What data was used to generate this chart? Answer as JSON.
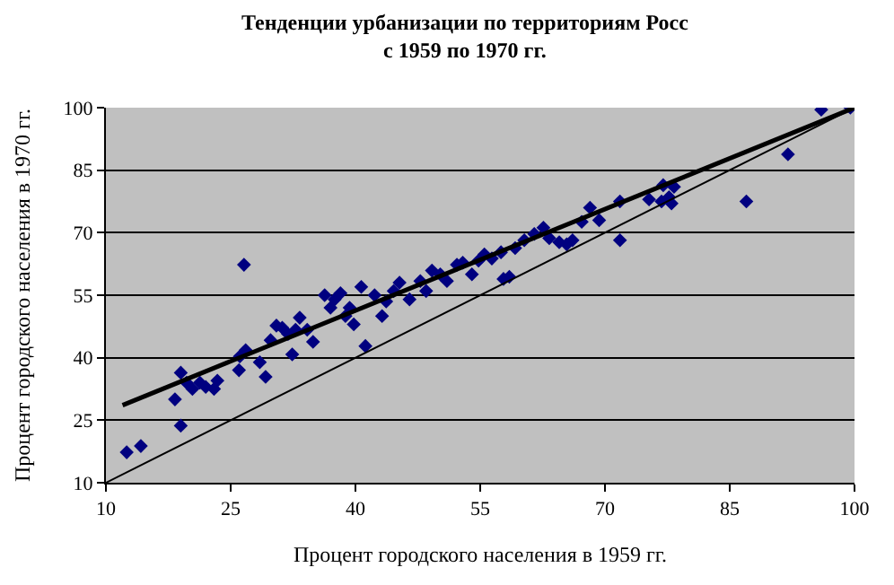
{
  "chart_data": {
    "type": "scatter",
    "title": "Тенденции урбанизации по территориям Росс\nс 1959 по 1970 гг.",
    "xlabel": "Процент городского населения в 1959 гг.",
    "ylabel": "Процент городского населения в 1970 гг.",
    "xlim": [
      10,
      100
    ],
    "xticks": [
      10,
      25,
      40,
      55,
      70,
      85,
      100
    ],
    "ylim": [
      10,
      100
    ],
    "yticks": [
      10,
      25,
      40,
      55,
      70,
      85,
      100
    ],
    "grid": "y",
    "series": [
      {
        "marker": "diamond",
        "color": "#000080",
        "x": [
          12.5,
          14.2,
          18.3,
          19,
          19,
          19.7,
          20.4,
          21.3,
          22,
          23,
          23.4,
          26,
          26.1,
          26.6,
          26.8,
          28.5,
          29.2,
          29.8,
          30.5,
          31.2,
          32.4,
          31.9,
          32.8,
          33.3,
          34.2,
          34.9,
          36.3,
          37,
          37.5,
          38.2,
          38.8,
          39.3,
          39.8,
          40.7,
          41.2,
          42.3,
          43.2,
          43.7,
          44.6,
          45.3,
          46.5,
          47.8,
          48.5,
          49.2,
          50.2,
          51,
          52.2,
          52.9,
          54,
          54.8,
          55.5,
          56.4,
          57.8,
          58.5,
          57.5,
          59.2,
          60.3,
          61.5,
          62.6,
          63.3,
          64.5,
          65.4,
          66.1,
          67.2,
          68.2,
          69.3,
          71.8,
          71.8,
          77,
          76.8,
          77.7,
          78,
          78.3,
          75.3,
          87,
          92,
          96,
          99.5
        ],
        "values": [
          17.3,
          18.8,
          30,
          36.4,
          23.7,
          34,
          32.5,
          34,
          33,
          32.5,
          34.5,
          37,
          40.3,
          62.3,
          41.8,
          38.9,
          35.4,
          44.2,
          47.7,
          47.2,
          40.8,
          45.7,
          46.7,
          49.6,
          46.7,
          43.8,
          55,
          52,
          54,
          55.5,
          50,
          52,
          48,
          57,
          42.8,
          55,
          50,
          53.5,
          56,
          58,
          54,
          58.4,
          56,
          60.9,
          60,
          58.4,
          62.3,
          62.8,
          60,
          63.3,
          64.8,
          63.8,
          58.9,
          59.4,
          65.3,
          66.3,
          68.2,
          69.7,
          71.2,
          68.7,
          67.7,
          67.2,
          68.2,
          72.6,
          76,
          73,
          68.2,
          77.5,
          81.4,
          77.5,
          78.5,
          77,
          81,
          78,
          77.5,
          88.8,
          99.5,
          100
        ]
      },
      {
        "type": "line",
        "marker": "none",
        "color": "#000000",
        "x": [
          12,
          100
        ],
        "values": [
          28.6,
          100
        ]
      },
      {
        "type": "line",
        "marker": "none",
        "color": "#000000",
        "x": [
          10,
          100
        ],
        "values": [
          10,
          100
        ]
      }
    ]
  }
}
